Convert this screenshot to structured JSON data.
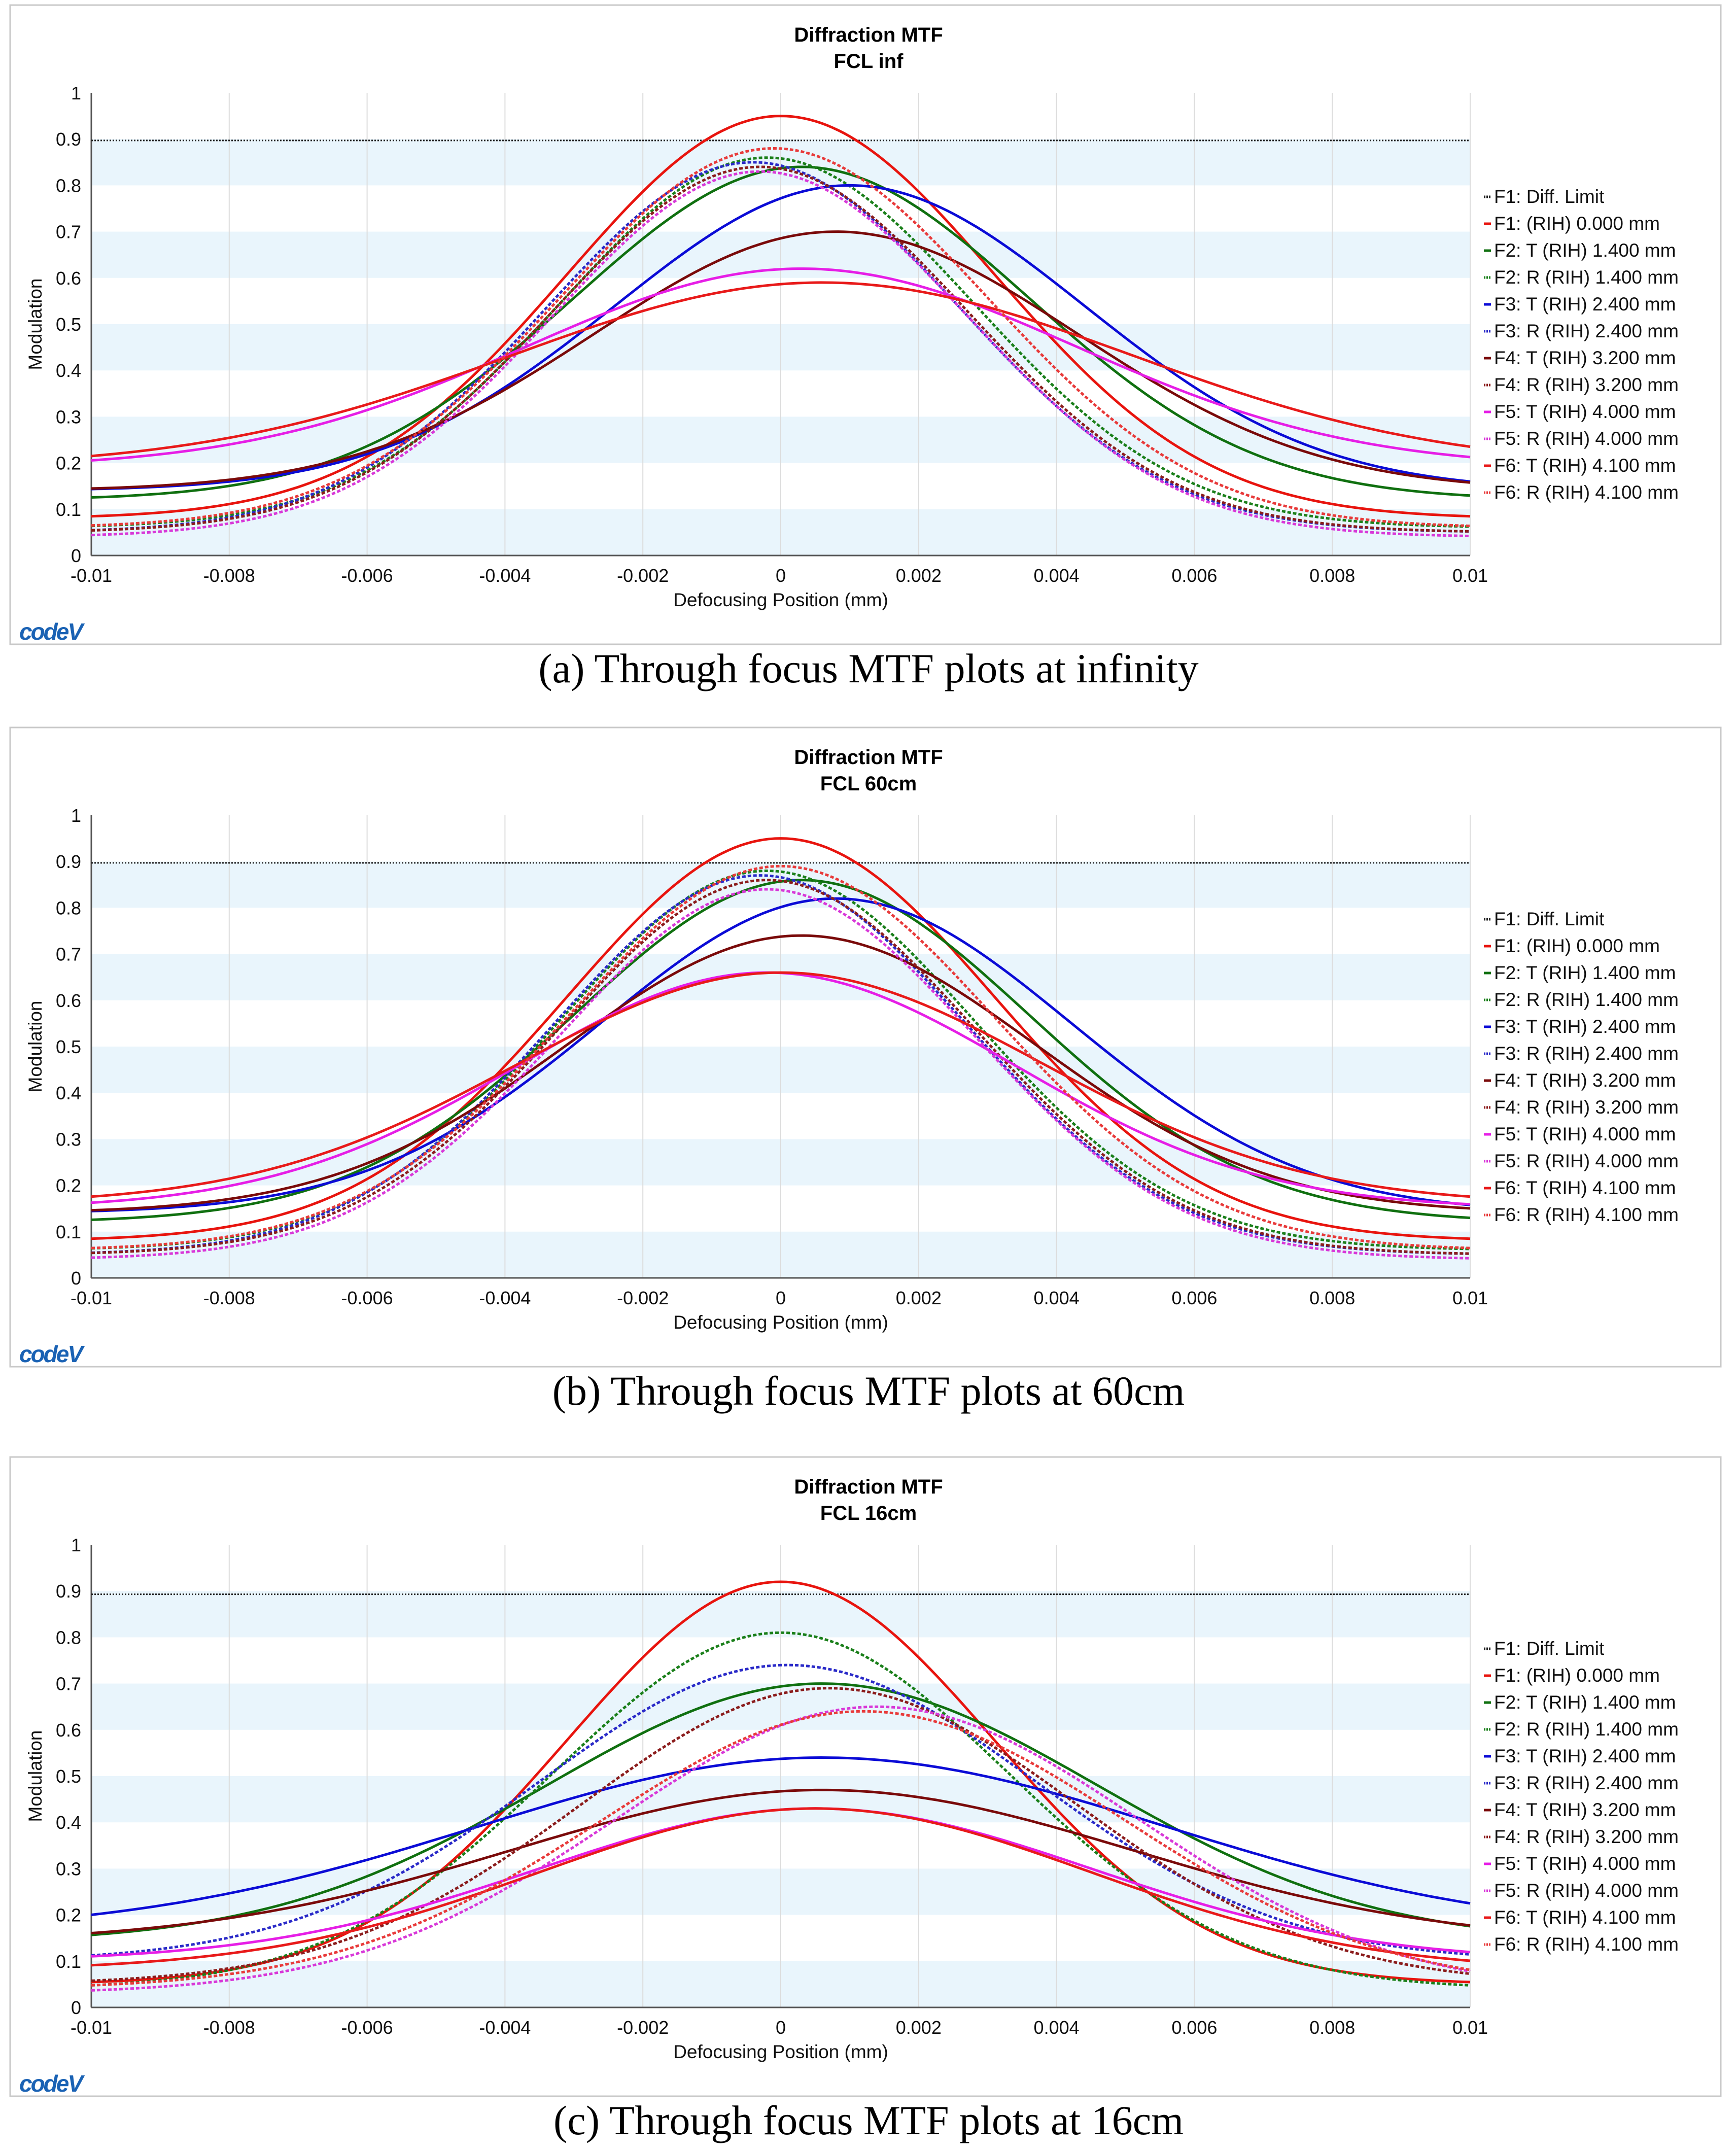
{
  "chart_data": [
    {
      "type": "line",
      "title": "Diffraction MTF",
      "subtitle": "FCL inf",
      "caption": "(a) Through focus MTF plots at infinity",
      "xlabel": "Defocusing Position (mm)",
      "ylabel": "Modulation",
      "xlim": [
        -0.01,
        0.01
      ],
      "ylim": [
        0,
        1
      ],
      "xticks": [
        "-0.01",
        "-0.008",
        "-0.006",
        "-0.004",
        "-0.002",
        "0",
        "0.002",
        "0.004",
        "0.006",
        "0.008",
        "0.01"
      ],
      "yticks": [
        "0",
        "0.1",
        "0.2",
        "0.3",
        "0.4",
        "0.5",
        "0.6",
        "0.7",
        "0.8",
        "0.9",
        "1"
      ],
      "legend_position": "right",
      "watermark": "codeV",
      "diff_limit": 0.897,
      "series": [
        {
          "name": "F1: Diff. Limit",
          "color": "#222222",
          "dotted": true,
          "flat": 0.897
        },
        {
          "name": "F1: (RIH) 0.000 mm",
          "color": "#e8140e",
          "dotted": false,
          "curve": {
            "a": 0.87,
            "b": 0.08,
            "c": 0.0,
            "s": 0.0031
          }
        },
        {
          "name": "F2: T (RIH) 1.400 mm",
          "color": "#107010",
          "dotted": false,
          "curve": {
            "a": 0.72,
            "b": 0.12,
            "c": 0.0003,
            "s": 0.0033
          }
        },
        {
          "name": "F2: R (RIH) 1.400 mm",
          "color": "#1a7f1a",
          "dotted": true,
          "curve": {
            "a": 0.8,
            "b": 0.06,
            "c": -0.0002,
            "s": 0.003
          }
        },
        {
          "name": "F3: T (RIH) 2.400 mm",
          "color": "#0b0bd6",
          "dotted": false,
          "curve": {
            "a": 0.66,
            "b": 0.14,
            "c": 0.001,
            "s": 0.0034
          }
        },
        {
          "name": "F3: R (RIH) 2.400 mm",
          "color": "#2a2ac8",
          "dotted": true,
          "curve": {
            "a": 0.8,
            "b": 0.05,
            "c": -0.0004,
            "s": 0.003
          }
        },
        {
          "name": "F4: T (RIH) 3.200 mm",
          "color": "#7a0a0a",
          "dotted": false,
          "curve": {
            "a": 0.56,
            "b": 0.14,
            "c": 0.0008,
            "s": 0.0035
          }
        },
        {
          "name": "F4: R (RIH) 3.200 mm",
          "color": "#8b1c1c",
          "dotted": true,
          "curve": {
            "a": 0.79,
            "b": 0.05,
            "c": -0.0003,
            "s": 0.003
          }
        },
        {
          "name": "F5: T (RIH) 4.000 mm",
          "color": "#e61ee6",
          "dotted": false,
          "curve": {
            "a": 0.43,
            "b": 0.19,
            "c": 0.0003,
            "s": 0.004
          }
        },
        {
          "name": "F5: R (RIH) 4.000 mm",
          "color": "#d838d8",
          "dotted": true,
          "curve": {
            "a": 0.79,
            "b": 0.04,
            "c": -0.0003,
            "s": 0.003
          }
        },
        {
          "name": "F6: T (RIH) 4.100 mm",
          "color": "#e81a1a",
          "dotted": false,
          "curve": {
            "a": 0.4,
            "b": 0.19,
            "c": 0.0006,
            "s": 0.0045
          }
        },
        {
          "name": "F6: R (RIH) 4.100 mm",
          "color": "#e83a3a",
          "dotted": true,
          "curve": {
            "a": 0.82,
            "b": 0.06,
            "c": -0.0001,
            "s": 0.0031
          }
        }
      ]
    },
    {
      "type": "line",
      "title": "Diffraction MTF",
      "subtitle": "FCL 60cm",
      "caption": "(b) Through focus MTF plots at 60cm",
      "xlabel": "Defocusing Position (mm)",
      "ylabel": "Modulation",
      "xlim": [
        -0.01,
        0.01
      ],
      "ylim": [
        0,
        1
      ],
      "xticks": [
        "-0.01",
        "-0.008",
        "-0.006",
        "-0.004",
        "-0.002",
        "0",
        "0.002",
        "0.004",
        "0.006",
        "0.008",
        "0.01"
      ],
      "yticks": [
        "0",
        "0.1",
        "0.2",
        "0.3",
        "0.4",
        "0.5",
        "0.6",
        "0.7",
        "0.8",
        "0.9",
        "1"
      ],
      "legend_position": "right",
      "watermark": "codeV",
      "diff_limit": 0.897,
      "series": [
        {
          "name": "F1: Diff. Limit",
          "color": "#222222",
          "dotted": true,
          "flat": 0.897
        },
        {
          "name": "F1: (RIH) 0.000 mm",
          "color": "#e8140e",
          "dotted": false,
          "curve": {
            "a": 0.87,
            "b": 0.08,
            "c": 0.0,
            "s": 0.0031
          }
        },
        {
          "name": "F2: T (RIH) 1.400 mm",
          "color": "#107010",
          "dotted": false,
          "curve": {
            "a": 0.74,
            "b": 0.12,
            "c": 0.0003,
            "s": 0.0033
          }
        },
        {
          "name": "F2: R (RIH) 1.400 mm",
          "color": "#1a7f1a",
          "dotted": true,
          "curve": {
            "a": 0.82,
            "b": 0.06,
            "c": -0.0002,
            "s": 0.003
          }
        },
        {
          "name": "F3: T (RIH) 2.400 mm",
          "color": "#0b0bd6",
          "dotted": false,
          "curve": {
            "a": 0.68,
            "b": 0.14,
            "c": 0.0008,
            "s": 0.0034
          }
        },
        {
          "name": "F3: R (RIH) 2.400 mm",
          "color": "#2a2ac8",
          "dotted": true,
          "curve": {
            "a": 0.82,
            "b": 0.05,
            "c": -0.0003,
            "s": 0.003
          }
        },
        {
          "name": "F4: T (RIH) 3.200 mm",
          "color": "#7a0a0a",
          "dotted": false,
          "curve": {
            "a": 0.6,
            "b": 0.14,
            "c": 0.0003,
            "s": 0.0034
          }
        },
        {
          "name": "F4: R (RIH) 3.200 mm",
          "color": "#8b1c1c",
          "dotted": true,
          "curve": {
            "a": 0.81,
            "b": 0.05,
            "c": -0.0002,
            "s": 0.003
          }
        },
        {
          "name": "F5: T (RIH) 4.000 mm",
          "color": "#e61ee6",
          "dotted": false,
          "curve": {
            "a": 0.51,
            "b": 0.15,
            "c": -0.0002,
            "s": 0.0036
          }
        },
        {
          "name": "F5: R (RIH) 4.000 mm",
          "color": "#d838d8",
          "dotted": true,
          "curve": {
            "a": 0.8,
            "b": 0.04,
            "c": -0.0002,
            "s": 0.003
          }
        },
        {
          "name": "F6: T (RIH) 4.100 mm",
          "color": "#e81a1a",
          "dotted": false,
          "curve": {
            "a": 0.5,
            "b": 0.16,
            "c": 0.0,
            "s": 0.0038
          }
        },
        {
          "name": "F6: R (RIH) 4.100 mm",
          "color": "#e83a3a",
          "dotted": true,
          "curve": {
            "a": 0.83,
            "b": 0.06,
            "c": 0.0,
            "s": 0.0031
          }
        }
      ]
    },
    {
      "type": "line",
      "title": "Diffraction MTF",
      "subtitle": "FCL 16cm",
      "caption": "(c) Through focus MTF plots at 16cm",
      "xlabel": "Defocusing Position (mm)",
      "ylabel": "Modulation",
      "xlim": [
        -0.01,
        0.01
      ],
      "ylim": [
        0,
        1
      ],
      "xticks": [
        "-0.01",
        "-0.008",
        "-0.006",
        "-0.004",
        "-0.002",
        "0",
        "0.002",
        "0.004",
        "0.006",
        "0.008",
        "0.01"
      ],
      "yticks": [
        "0",
        "0.1",
        "0.2",
        "0.3",
        "0.4",
        "0.5",
        "0.6",
        "0.7",
        "0.8",
        "0.9",
        "1"
      ],
      "legend_position": "right",
      "watermark": "codeV",
      "diff_limit": 0.893,
      "series": [
        {
          "name": "F1: Diff. Limit",
          "color": "#222222",
          "dotted": true,
          "flat": 0.893
        },
        {
          "name": "F1: (RIH) 0.000 mm",
          "color": "#e8140e",
          "dotted": false,
          "curve": {
            "a": 0.87,
            "b": 0.05,
            "c": 0.0,
            "s": 0.0031
          }
        },
        {
          "name": "F2: T (RIH) 1.400 mm",
          "color": "#107010",
          "dotted": false,
          "curve": {
            "a": 0.56,
            "b": 0.14,
            "c": 0.0006,
            "s": 0.004
          }
        },
        {
          "name": "F2: R (RIH) 1.400 mm",
          "color": "#1a7f1a",
          "dotted": true,
          "curve": {
            "a": 0.77,
            "b": 0.04,
            "c": 0.0,
            "s": 0.0033
          }
        },
        {
          "name": "F3: T (RIH) 2.400 mm",
          "color": "#0b0bd6",
          "dotted": false,
          "curve": {
            "a": 0.38,
            "b": 0.16,
            "c": 0.0006,
            "s": 0.005
          }
        },
        {
          "name": "F3: R (RIH) 2.400 mm",
          "color": "#2a2ac8",
          "dotted": true,
          "curve": {
            "a": 0.64,
            "b": 0.1,
            "c": 0.0001,
            "s": 0.0036
          }
        },
        {
          "name": "F4: T (RIH) 3.200 mm",
          "color": "#7a0a0a",
          "dotted": false,
          "curve": {
            "a": 0.33,
            "b": 0.14,
            "c": 0.0006,
            "s": 0.0045
          }
        },
        {
          "name": "F4: R (RIH) 3.200 mm",
          "color": "#8b1c1c",
          "dotted": true,
          "curve": {
            "a": 0.64,
            "b": 0.05,
            "c": 0.0007,
            "s": 0.0036
          }
        },
        {
          "name": "F5: T (RIH) 4.000 mm",
          "color": "#e61ee6",
          "dotted": false,
          "curve": {
            "a": 0.33,
            "b": 0.1,
            "c": 0.0005,
            "s": 0.004
          }
        },
        {
          "name": "F5: R (RIH) 4.000 mm",
          "color": "#d838d8",
          "dotted": true,
          "curve": {
            "a": 0.62,
            "b": 0.03,
            "c": 0.0014,
            "s": 0.0038
          }
        },
        {
          "name": "F6: T (RIH) 4.100 mm",
          "color": "#e81a1a",
          "dotted": false,
          "curve": {
            "a": 0.35,
            "b": 0.08,
            "c": 0.0005,
            "s": 0.004
          }
        },
        {
          "name": "F6: R (RIH) 4.100 mm",
          "color": "#e83a3a",
          "dotted": true,
          "curve": {
            "a": 0.6,
            "b": 0.04,
            "c": 0.0012,
            "s": 0.0038
          }
        }
      ]
    }
  ]
}
